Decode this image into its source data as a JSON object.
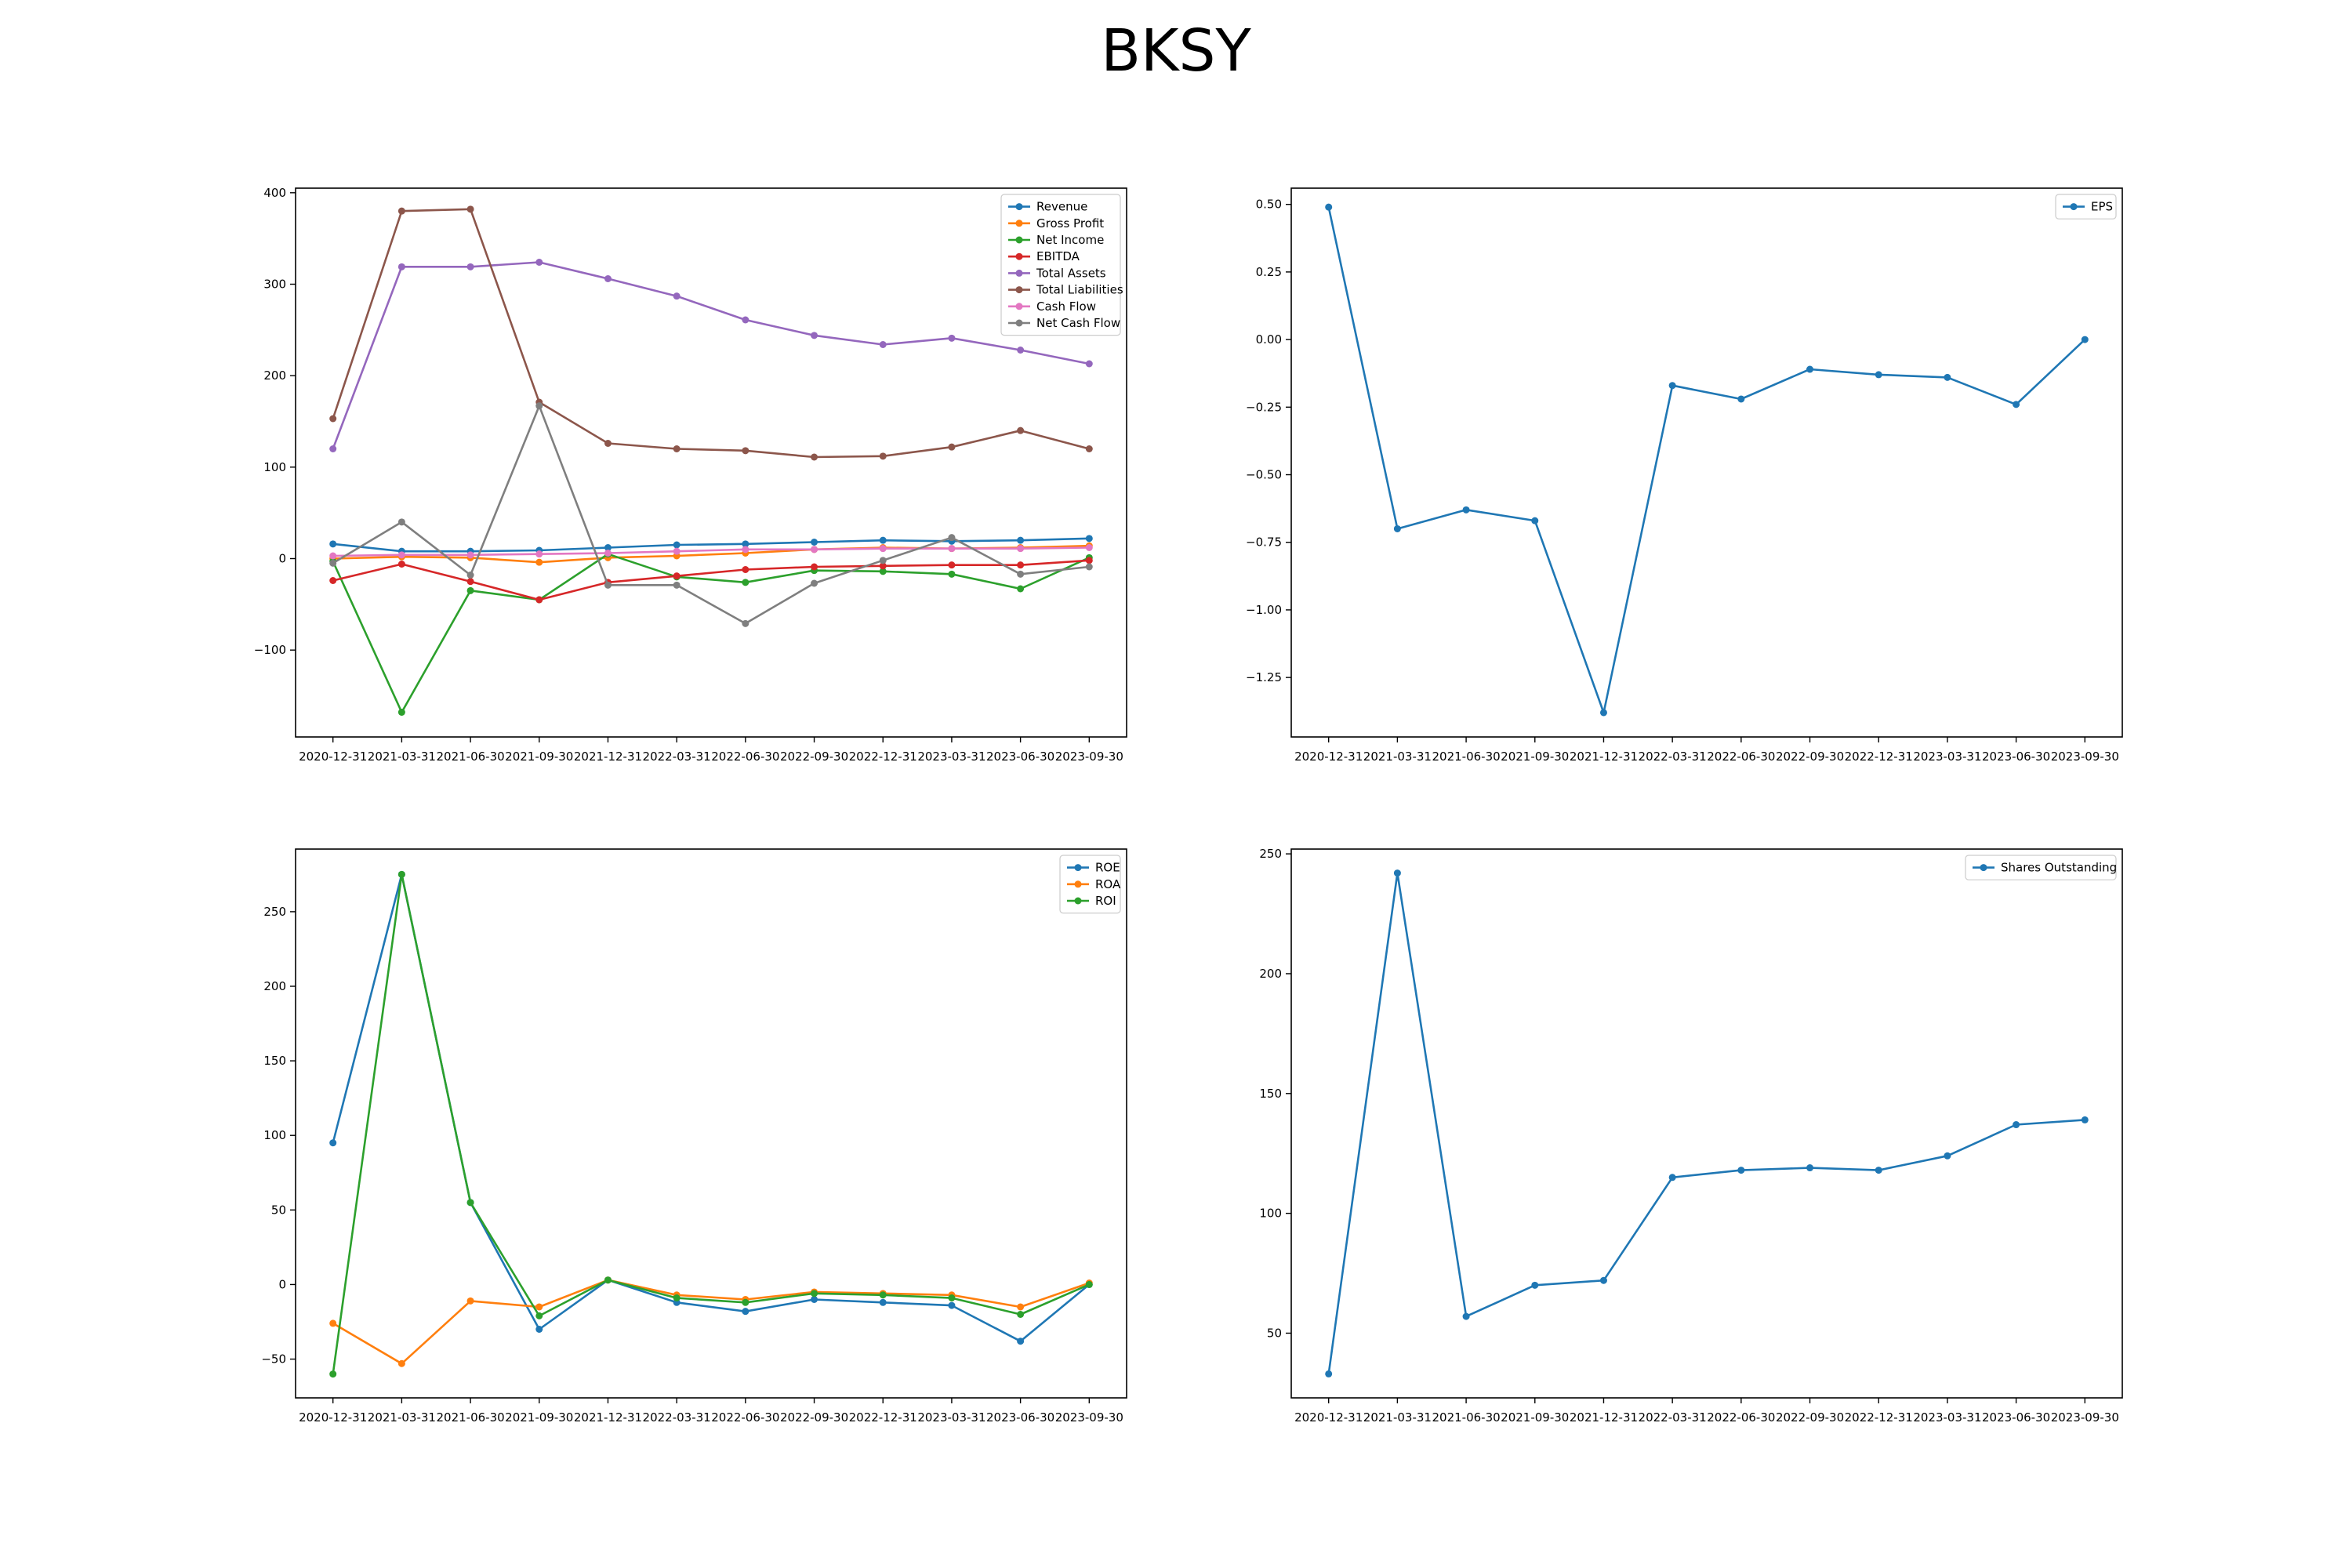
{
  "figure": {
    "title": "BKSY"
  },
  "colors": {
    "blue": "#1f77b4",
    "orange": "#ff7f0e",
    "green": "#2ca02c",
    "red": "#d62728",
    "purple": "#9467bd",
    "brown": "#8c564b",
    "pink": "#e377c2",
    "gray": "#7f7f7f"
  },
  "chart_data": [
    {
      "type": "line",
      "title": "",
      "x": [
        "2020-12-31",
        "2021-03-31",
        "2021-06-30",
        "2021-09-30",
        "2021-12-31",
        "2022-03-31",
        "2022-06-30",
        "2022-09-30",
        "2022-12-31",
        "2023-03-31",
        "2023-06-30",
        "2023-09-30"
      ],
      "ylim": [
        -195,
        405
      ],
      "yticks": [
        -100,
        0,
        100,
        200,
        300,
        400
      ],
      "tick_labels": [
        "−100",
        "0",
        "100",
        "200",
        "300",
        "400"
      ],
      "legend_position": "top-right",
      "grid": false,
      "series": [
        {
          "name": "Revenue",
          "color": "#1f77b4",
          "values": [
            16,
            8,
            8,
            9,
            12,
            15,
            16,
            18,
            20,
            19,
            20,
            22
          ]
        },
        {
          "name": "Gross Profit",
          "color": "#ff7f0e",
          "values": [
            0,
            2,
            1,
            -4,
            1,
            3,
            6,
            10,
            12,
            11,
            12,
            14
          ]
        },
        {
          "name": "Net Income",
          "color": "#2ca02c",
          "values": [
            -3,
            -168,
            -35,
            -45,
            5,
            -20,
            -26,
            -13,
            -14,
            -17,
            -33,
            1
          ]
        },
        {
          "name": "EBITDA",
          "color": "#d62728",
          "values": [
            -24,
            -6,
            -25,
            -45,
            -26,
            -19,
            -12,
            -9,
            -8,
            -7,
            -7,
            -2
          ]
        },
        {
          "name": "Total Assets",
          "color": "#9467bd",
          "values": [
            120,
            319,
            319,
            324,
            306,
            287,
            261,
            244,
            234,
            241,
            228,
            213
          ]
        },
        {
          "name": "Total Liabilities",
          "color": "#8c564b",
          "values": [
            153,
            380,
            382,
            171,
            126,
            120,
            118,
            111,
            112,
            122,
            140,
            120
          ]
        },
        {
          "name": "Cash Flow",
          "color": "#e377c2",
          "values": [
            3,
            4,
            4,
            5,
            6,
            8,
            10,
            10,
            11,
            11,
            11,
            12
          ]
        },
        {
          "name": "Net Cash Flow",
          "color": "#7f7f7f",
          "values": [
            -5,
            40,
            -18,
            167,
            -29,
            -29,
            -71,
            -27,
            -2,
            23,
            -17,
            -9
          ]
        }
      ]
    },
    {
      "type": "line",
      "title": "",
      "x": [
        "2020-12-31",
        "2021-03-31",
        "2021-06-30",
        "2021-09-30",
        "2021-12-31",
        "2022-03-31",
        "2022-06-30",
        "2022-09-30",
        "2022-12-31",
        "2023-03-31",
        "2023-06-30",
        "2023-09-30"
      ],
      "ylim": [
        -1.47,
        0.56
      ],
      "yticks": [
        -1.25,
        -1.0,
        -0.75,
        -0.5,
        -0.25,
        0.0,
        0.25,
        0.5
      ],
      "tick_labels": [
        "−1.25",
        "−1.00",
        "−0.75",
        "−0.50",
        "−0.25",
        "0.00",
        "0.25",
        "0.50"
      ],
      "legend_position": "top-right",
      "grid": false,
      "series": [
        {
          "name": "EPS",
          "color": "#1f77b4",
          "values": [
            0.49,
            -0.7,
            -0.63,
            -0.67,
            -1.38,
            -0.17,
            -0.22,
            -0.11,
            -0.13,
            -0.14,
            -0.24,
            0.0
          ]
        }
      ]
    },
    {
      "type": "line",
      "title": "",
      "x": [
        "2020-12-31",
        "2021-03-31",
        "2021-06-30",
        "2021-09-30",
        "2021-12-31",
        "2022-03-31",
        "2022-06-30",
        "2022-09-30",
        "2022-12-31",
        "2023-03-31",
        "2023-06-30",
        "2023-09-30"
      ],
      "ylim": [
        -76,
        292
      ],
      "yticks": [
        -50,
        0,
        50,
        100,
        150,
        200,
        250
      ],
      "tick_labels": [
        "−50",
        "0",
        "50",
        "100",
        "150",
        "200",
        "250"
      ],
      "legend_position": "top-right",
      "grid": false,
      "series": [
        {
          "name": "ROE",
          "color": "#1f77b4",
          "values": [
            95,
            275,
            55,
            -30,
            3,
            -12,
            -18,
            -10,
            -12,
            -14,
            -38,
            0
          ]
        },
        {
          "name": "ROA",
          "color": "#ff7f0e",
          "values": [
            -26,
            -53,
            -11,
            -15,
            3,
            -7,
            -10,
            -5,
            -6,
            -7,
            -15,
            1
          ]
        },
        {
          "name": "ROI",
          "color": "#2ca02c",
          "values": [
            -60,
            275,
            55,
            -21,
            3,
            -9,
            -12,
            -6,
            -7,
            -9,
            -20,
            0
          ]
        }
      ]
    },
    {
      "type": "line",
      "title": "",
      "x": [
        "2020-12-31",
        "2021-03-31",
        "2021-06-30",
        "2021-09-30",
        "2021-12-31",
        "2022-03-31",
        "2022-06-30",
        "2022-09-30",
        "2022-12-31",
        "2023-03-31",
        "2023-06-30",
        "2023-09-30"
      ],
      "ylim": [
        23,
        252
      ],
      "yticks": [
        50,
        100,
        150,
        200,
        250
      ],
      "tick_labels": [
        "50",
        "100",
        "150",
        "200",
        "250"
      ],
      "legend_position": "top-right",
      "grid": false,
      "series": [
        {
          "name": "Shares Outstanding",
          "color": "#1f77b4",
          "values": [
            33,
            242,
            57,
            70,
            72,
            115,
            118,
            119,
            118,
            124,
            137,
            139
          ]
        }
      ]
    }
  ]
}
